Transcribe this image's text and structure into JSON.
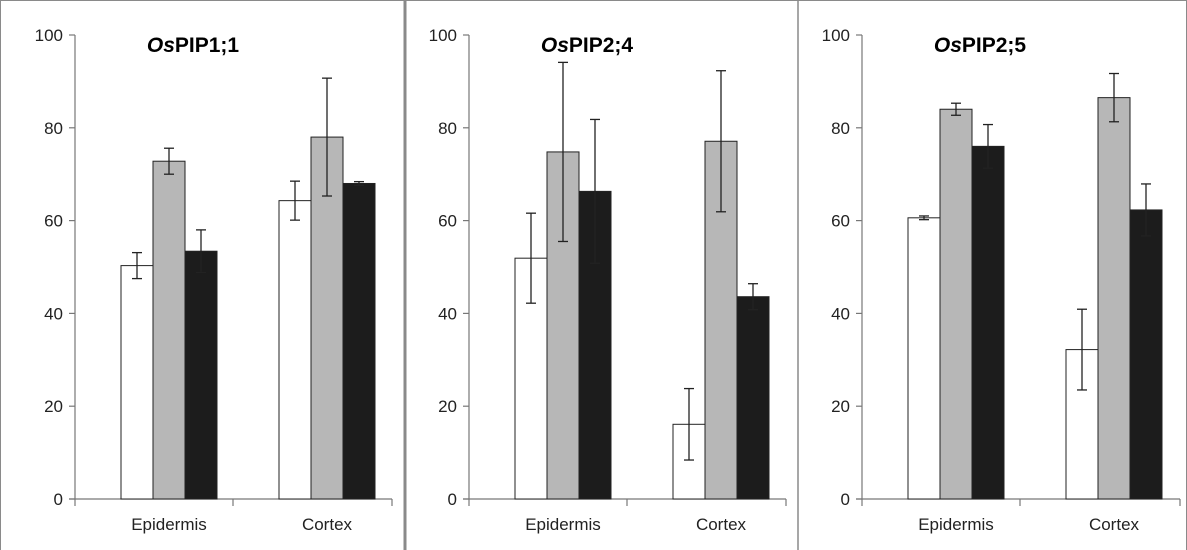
{
  "chart_data": [
    {
      "type": "bar",
      "title_italic": "Os",
      "title_rest": "PIP1;1",
      "categories": [
        "Epidermis",
        "Cortex"
      ],
      "ylim": [
        0,
        100
      ],
      "yticks": [
        "0",
        "20",
        "40",
        "60",
        "80",
        "100"
      ],
      "grid": false,
      "series": [
        {
          "fill": "#ffffff",
          "values": [
            50.3,
            64.3
          ],
          "errors": [
            2.8,
            4.2
          ]
        },
        {
          "fill": "#b7b7b7",
          "values": [
            72.8,
            78.0
          ],
          "errors": [
            2.8,
            12.7
          ]
        },
        {
          "fill": "#1c1c1c",
          "values": [
            53.4,
            68.0
          ],
          "errors": [
            4.6,
            0.4
          ]
        }
      ]
    },
    {
      "type": "bar",
      "title_italic": "Os",
      "title_rest": "PIP2;4",
      "categories": [
        "Epidermis",
        "Cortex"
      ],
      "ylim": [
        0,
        100
      ],
      "yticks": [
        "0",
        "20",
        "40",
        "60",
        "80",
        "100"
      ],
      "grid": false,
      "series": [
        {
          "fill": "#ffffff",
          "values": [
            51.9,
            16.1
          ],
          "errors": [
            9.7,
            7.7
          ]
        },
        {
          "fill": "#b7b7b7",
          "values": [
            74.8,
            77.1
          ],
          "errors": [
            19.3,
            15.2
          ]
        },
        {
          "fill": "#1c1c1c",
          "values": [
            66.3,
            43.6
          ],
          "errors": [
            15.5,
            2.8
          ]
        }
      ]
    },
    {
      "type": "bar",
      "title_italic": "Os",
      "title_rest": "PIP2;5",
      "categories": [
        "Epidermis",
        "Cortex"
      ],
      "ylim": [
        0,
        100
      ],
      "yticks": [
        "0",
        "20",
        "40",
        "60",
        "80",
        "100"
      ],
      "grid": false,
      "series": [
        {
          "fill": "#ffffff",
          "values": [
            60.6,
            32.2
          ],
          "errors": [
            0.4,
            8.7
          ]
        },
        {
          "fill": "#b7b7b7",
          "values": [
            84.0,
            86.5
          ],
          "errors": [
            1.3,
            5.2
          ]
        },
        {
          "fill": "#1c1c1c",
          "values": [
            76.0,
            62.3
          ],
          "errors": [
            4.7,
            5.6
          ]
        }
      ]
    }
  ]
}
